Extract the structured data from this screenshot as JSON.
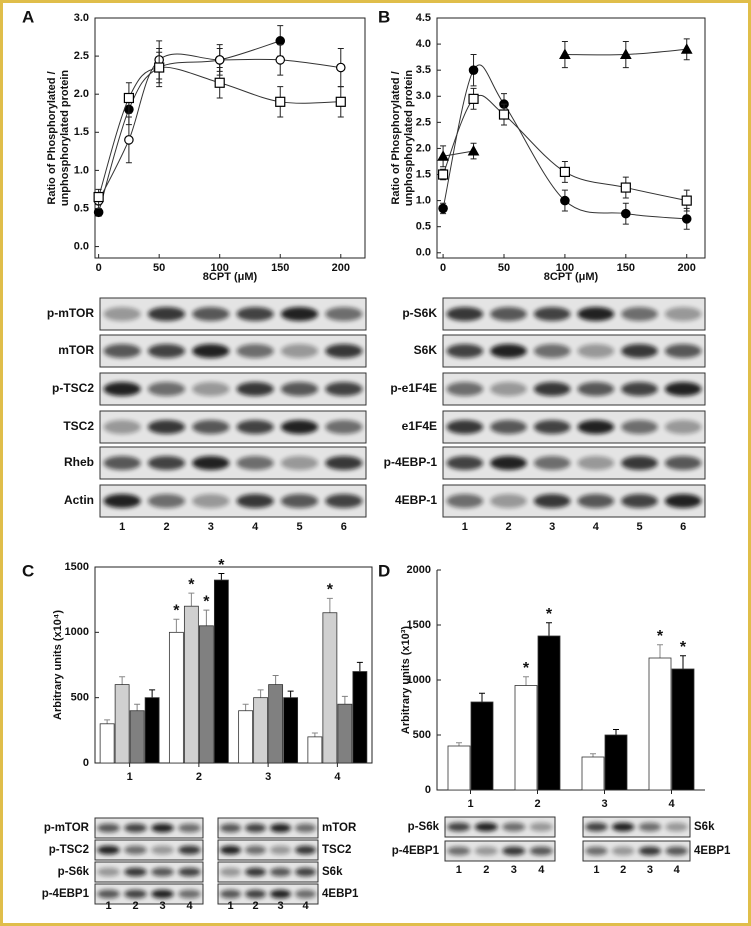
{
  "chart_data": [
    {
      "panel": "A",
      "type": "scatter",
      "xlabel": "8CPT (μM)",
      "ylabel": [
        "Ratio of Phosphorylated /",
        "unphosphorylated protein"
      ],
      "x": [
        0,
        25,
        50,
        100,
        150,
        200
      ],
      "xlim": [
        -3,
        220
      ],
      "xticks": [
        0,
        50,
        100,
        150,
        200
      ],
      "ylim": [
        -0.15,
        3.0
      ],
      "yticks": [
        {
          "value": 0,
          "label": "0.0"
        },
        {
          "value": 0.5,
          "label": "0.5"
        },
        {
          "value": 1,
          "label": "1.0"
        },
        {
          "value": 1.5,
          "label": "1.5"
        },
        {
          "value": 2,
          "label": "2.0"
        },
        {
          "value": 2.5,
          "label": "2.5"
        },
        {
          "value": 3,
          "label": "3.0"
        }
      ],
      "series": [
        {
          "marker": "filled-circle",
          "color": "#000000",
          "values": [
            0.45,
            1.8,
            2.35,
            2.45,
            2.7,
            null
          ],
          "errors": [
            0.05,
            0.2,
            0.2,
            0.15,
            0.2,
            null
          ]
        },
        {
          "marker": "open-circle",
          "color": "#000000",
          "values": [
            0.6,
            1.4,
            2.45,
            2.45,
            2.45,
            2.35
          ],
          "errors": [
            0.1,
            0.3,
            0.25,
            0.2,
            0.2,
            0.25
          ]
        },
        {
          "marker": "open-square",
          "color": "#000000",
          "values": [
            0.65,
            1.95,
            2.35,
            2.15,
            1.9,
            1.9
          ],
          "errors": [
            0.1,
            0.2,
            0.25,
            0.2,
            0.2,
            0.2
          ]
        }
      ]
    },
    {
      "panel": "B",
      "type": "scatter",
      "xlabel": "8CPT (μM)",
      "ylabel": [
        "Ratio of Phosphorylated /",
        "unphosphorylated protein"
      ],
      "x": [
        0,
        25,
        50,
        100,
        150,
        200
      ],
      "xlim": [
        -5,
        215
      ],
      "xticks": [
        0,
        50,
        100,
        150,
        200
      ],
      "ylim": [
        -0.1,
        4.5
      ],
      "yticks": [
        {
          "value": 0,
          "label": "0.0"
        },
        {
          "value": 0.5,
          "label": "0.5"
        },
        {
          "value": 1,
          "label": "1.0"
        },
        {
          "value": 1.5,
          "label": "1.5"
        },
        {
          "value": 2,
          "label": "2.0"
        },
        {
          "value": 2.5,
          "label": "2.5"
        },
        {
          "value": 3,
          "label": "3.0"
        },
        {
          "value": 3.5,
          "label": "3.5"
        },
        {
          "value": 4,
          "label": "4.0"
        },
        {
          "value": 4.5,
          "label": "4.5"
        }
      ],
      "series": [
        {
          "marker": "filled-circle",
          "color": "#000000",
          "values": [
            0.85,
            3.5,
            2.85,
            1.0,
            0.75,
            0.65
          ],
          "errors": [
            0.1,
            0.3,
            0.2,
            0.2,
            0.2,
            0.2
          ]
        },
        {
          "marker": "open-square",
          "color": "#000000",
          "values": [
            1.5,
            2.95,
            2.65,
            1.55,
            1.25,
            1.0
          ],
          "errors": [
            0.1,
            0.2,
            0.2,
            0.2,
            0.2,
            0.2
          ]
        },
        {
          "marker": "filled-triangle",
          "color": "#000000",
          "values": [
            1.85,
            1.95,
            null,
            3.8,
            3.8,
            3.9
          ],
          "errors": [
            0.2,
            0.15,
            null,
            0.25,
            0.25,
            0.2
          ]
        }
      ]
    },
    {
      "panel": "C",
      "type": "bar",
      "ylabel": "Arbitrary units (x10⁴)",
      "categories": [
        "1",
        "2",
        "3",
        "4"
      ],
      "ylim": [
        0,
        1500
      ],
      "yticks": [
        0,
        500,
        1000,
        1500
      ],
      "frame": true,
      "series": [
        {
          "color": "#ffffff",
          "values": [
            300,
            1000,
            400,
            200
          ],
          "errors": [
            30,
            100,
            50,
            30
          ],
          "stars": [
            null,
            "*",
            null,
            null
          ]
        },
        {
          "color": "#d0d0d0",
          "values": [
            600,
            1200,
            500,
            1150
          ],
          "errors": [
            60,
            100,
            60,
            110
          ],
          "stars": [
            null,
            "*",
            null,
            "*"
          ]
        },
        {
          "color": "#808080",
          "values": [
            400,
            1050,
            600,
            450
          ],
          "errors": [
            50,
            120,
            70,
            60
          ],
          "stars": [
            null,
            "*",
            null,
            null
          ]
        },
        {
          "color": "#000000",
          "values": [
            500,
            1400,
            500,
            700
          ],
          "errors": [
            60,
            50,
            50,
            70
          ],
          "stars": [
            null,
            "*",
            null,
            null
          ]
        }
      ]
    },
    {
      "panel": "D",
      "type": "bar",
      "ylabel": "Arbitrary units (x10³)",
      "categories": [
        "1",
        "2",
        "3",
        "4"
      ],
      "ylim": [
        0,
        2000
      ],
      "yticks": [
        0,
        500,
        1000,
        1500,
        2000
      ],
      "frame": false,
      "series": [
        {
          "color": "#ffffff",
          "values": [
            400,
            950,
            300,
            1200
          ],
          "errors": [
            30,
            80,
            30,
            120
          ],
          "stars": [
            null,
            "*",
            null,
            "*"
          ]
        },
        {
          "color": "#000000",
          "values": [
            800,
            1400,
            500,
            1100
          ],
          "errors": [
            80,
            120,
            50,
            120
          ],
          "stars": [
            null,
            "*",
            null,
            "*"
          ]
        }
      ]
    }
  ],
  "blots": [
    {
      "groups": [
        {
          "rows": [
            "p-mTOR",
            "mTOR",
            "p-TSC2",
            "TSC2",
            "Rheb",
            "Actin"
          ],
          "lanes": [
            "1",
            "2",
            "3",
            "4",
            "5",
            "6"
          ]
        }
      ]
    },
    {
      "groups": [
        {
          "rows": [
            "p-S6K",
            "S6K",
            "p-e1F4E",
            "e1F4E",
            "p-4EBP-1",
            "4EBP-1"
          ],
          "lanes": [
            "1",
            "2",
            "3",
            "4",
            "5",
            "6"
          ]
        }
      ]
    },
    {
      "groups": [
        {
          "rows": [
            "p-mTOR",
            "p-TSC2",
            "p-S6k",
            "p-4EBP1"
          ],
          "lanes": [
            "1",
            "2",
            "3",
            "4"
          ]
        },
        {
          "rows": [
            "mTOR",
            "TSC2",
            "S6k",
            "4EBP1"
          ],
          "lanes": [
            "1",
            "2",
            "3",
            "4"
          ]
        }
      ]
    },
    {
      "groups": [
        {
          "rows": [
            "p-S6k",
            "p-4EBP1"
          ],
          "lanes": [
            "1",
            "2",
            "3",
            "4"
          ]
        },
        {
          "rows": [
            "S6k",
            "4EBP1"
          ],
          "lanes": [
            "1",
            "2",
            "3",
            "4"
          ]
        }
      ]
    }
  ]
}
